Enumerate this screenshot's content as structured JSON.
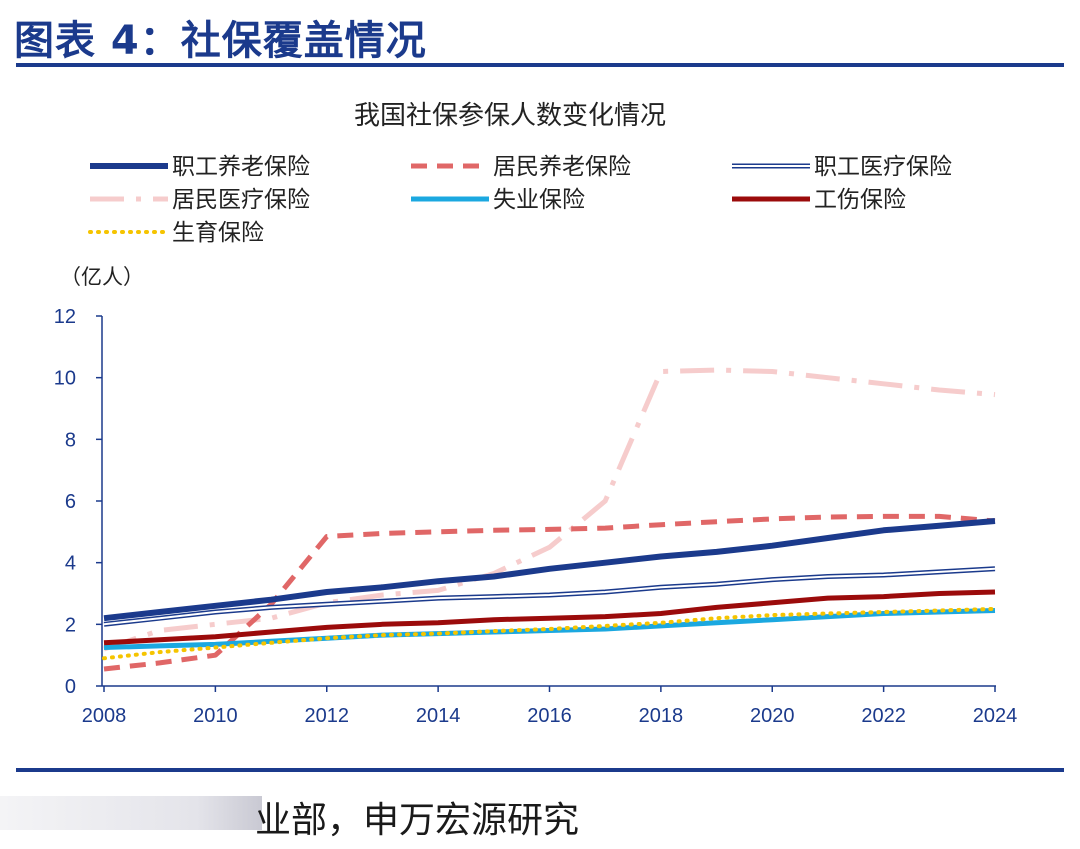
{
  "header": {
    "title": "图表 4：社保覆盖情况"
  },
  "footer": {
    "source": "业部，申万宏源研究"
  },
  "chart_data": {
    "type": "line",
    "title": "我国社保参保人数变化情况",
    "ylabel": "（亿人）",
    "ylim": [
      0,
      12
    ],
    "yticks": [
      "0",
      "2",
      "4",
      "6",
      "8",
      "10",
      "12"
    ],
    "xlim": [
      2008,
      2024
    ],
    "xticks": [
      "2008",
      "2010",
      "2012",
      "2014",
      "2016",
      "2018",
      "2020",
      "2022",
      "2024"
    ],
    "legend": "top",
    "grid": false,
    "colors": {
      "axis": "#1b3a8c",
      "employee_pension": "#1b3a8c",
      "resident_pension": "#e06767",
      "employee_medical": "#1b3a8c",
      "resident_medical": "#f6cccc",
      "unemployment": "#1ba8e0",
      "work_injury": "#9b0b0b",
      "maternity": "#f5c400"
    },
    "series": [
      {
        "name": "职工养老保险",
        "key": "employee_pension",
        "x": [
          2008,
          2009,
          2010,
          2011,
          2012,
          2013,
          2014,
          2015,
          2016,
          2017,
          2018,
          2019,
          2020,
          2021,
          2022,
          2023,
          2024
        ],
        "values": [
          2.2,
          2.4,
          2.6,
          2.8,
          3.05,
          3.2,
          3.4,
          3.55,
          3.8,
          4.0,
          4.2,
          4.35,
          4.55,
          4.8,
          5.05,
          5.2,
          5.35
        ]
      },
      {
        "name": "居民养老保险",
        "key": "resident_pension",
        "x": [
          2008,
          2009,
          2010,
          2011,
          2012,
          2013,
          2014,
          2015,
          2016,
          2017,
          2018,
          2019,
          2020,
          2021,
          2022,
          2023,
          2024
        ],
        "values": [
          0.55,
          0.75,
          1.0,
          2.65,
          4.85,
          4.95,
          5.0,
          5.05,
          5.08,
          5.12,
          5.23,
          5.33,
          5.42,
          5.48,
          5.5,
          5.5,
          5.35
        ]
      },
      {
        "name": "职工医疗保险",
        "key": "employee_medical",
        "x": [
          2008,
          2009,
          2010,
          2011,
          2012,
          2013,
          2014,
          2015,
          2016,
          2017,
          2018,
          2019,
          2020,
          2021,
          2022,
          2023,
          2024
        ],
        "values": [
          2.0,
          2.2,
          2.4,
          2.55,
          2.65,
          2.75,
          2.85,
          2.9,
          2.95,
          3.05,
          3.2,
          3.3,
          3.45,
          3.55,
          3.6,
          3.7,
          3.8
        ]
      },
      {
        "name": "居民医疗保险",
        "key": "resident_medical",
        "x": [
          2008,
          2009,
          2010,
          2011,
          2012,
          2013,
          2014,
          2015,
          2016,
          2017,
          2018,
          2019,
          2020,
          2021,
          2022,
          2023,
          2024
        ],
        "values": [
          1.2,
          1.8,
          2.0,
          2.2,
          2.7,
          2.95,
          3.1,
          3.65,
          4.5,
          6.0,
          10.2,
          10.25,
          10.2,
          10.0,
          9.8,
          9.6,
          9.45
        ]
      },
      {
        "name": "失业保险",
        "key": "unemployment",
        "x": [
          2008,
          2009,
          2010,
          2011,
          2012,
          2013,
          2014,
          2015,
          2016,
          2017,
          2018,
          2019,
          2020,
          2021,
          2022,
          2023,
          2024
        ],
        "values": [
          1.25,
          1.3,
          1.35,
          1.45,
          1.55,
          1.65,
          1.7,
          1.75,
          1.8,
          1.85,
          1.95,
          2.05,
          2.15,
          2.25,
          2.35,
          2.4,
          2.45
        ]
      },
      {
        "name": "工伤保险",
        "key": "work_injury",
        "x": [
          2008,
          2009,
          2010,
          2011,
          2012,
          2013,
          2014,
          2015,
          2016,
          2017,
          2018,
          2019,
          2020,
          2021,
          2022,
          2023,
          2024
        ],
        "values": [
          1.4,
          1.5,
          1.6,
          1.75,
          1.9,
          2.0,
          2.05,
          2.15,
          2.2,
          2.25,
          2.35,
          2.55,
          2.7,
          2.85,
          2.9,
          3.0,
          3.05
        ]
      },
      {
        "name": "生育保险",
        "key": "maternity",
        "x": [
          2008,
          2009,
          2010,
          2011,
          2012,
          2013,
          2014,
          2015,
          2016,
          2017,
          2018,
          2019,
          2020,
          2021,
          2022,
          2023,
          2024
        ],
        "values": [
          0.9,
          1.1,
          1.25,
          1.4,
          1.55,
          1.65,
          1.7,
          1.78,
          1.85,
          1.95,
          2.05,
          2.2,
          2.3,
          2.35,
          2.4,
          2.45,
          2.5
        ]
      }
    ]
  }
}
